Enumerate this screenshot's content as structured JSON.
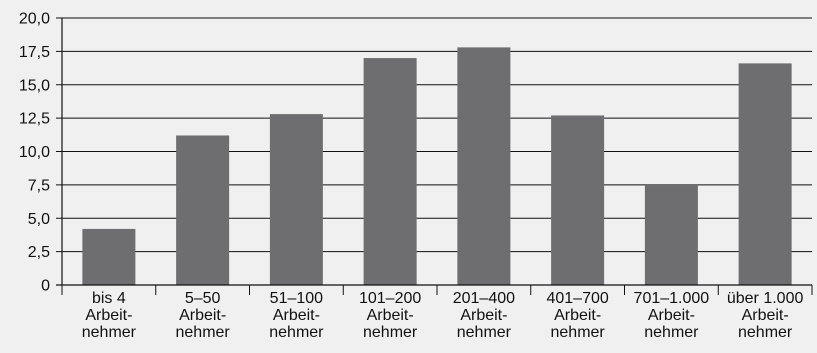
{
  "chart_data": {
    "type": "bar",
    "title": "",
    "xlabel": "",
    "ylabel": "",
    "categories": [
      [
        "bis 4",
        "Arbeit-",
        "nehmer"
      ],
      [
        "5–50",
        "Arbeit-",
        "nehmer"
      ],
      [
        "51–100",
        "Arbeit-",
        "nehmer"
      ],
      [
        "101–200",
        "Arbeit-",
        "nehmer"
      ],
      [
        "201–400",
        "Arbeit-",
        "nehmer"
      ],
      [
        "401–700",
        "Arbeit-",
        "nehmer"
      ],
      [
        "701–1.000",
        "Arbeit-",
        "nehmer"
      ],
      [
        "über 1.000",
        "Arbeit-",
        "nehmer"
      ]
    ],
    "values": [
      4.2,
      11.2,
      12.8,
      17.0,
      17.8,
      12.7,
      7.5,
      16.6
    ],
    "ylim": [
      0,
      20
    ],
    "yticks": [
      0,
      2.5,
      5,
      7.5,
      10,
      12.5,
      15,
      17.5,
      20
    ],
    "ytick_labels": [
      "0",
      "2,5",
      "5,0",
      "7,5",
      "10,0",
      "12,5",
      "15,0",
      "17,5",
      "20,0"
    ],
    "grid": true,
    "bar_color": "#6e6e70",
    "background_color": "#f0f0f0",
    "grid_color": "#111111"
  }
}
